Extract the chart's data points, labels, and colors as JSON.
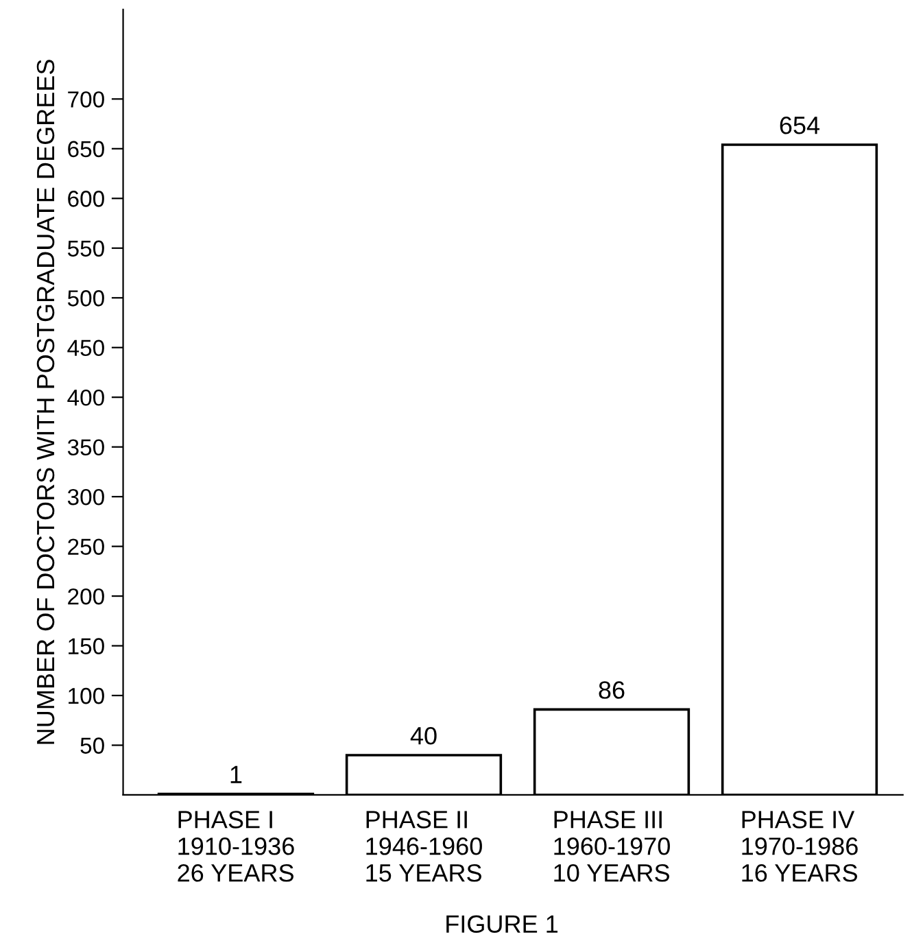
{
  "chart_data": {
    "type": "bar",
    "ylabel": "NUMBER OF DOCTORS WITH POSTGRADUATE DEGREES",
    "categories": [
      "PHASE I\n1910-1936\n26 YEARS",
      "PHASE II\n1946-1960\n15 YEARS",
      "PHASE III\n1960-1970\n10 YEARS",
      "PHASE IV\n1970-1986\n16 YEARS"
    ],
    "values": [
      1,
      40,
      86,
      654
    ],
    "color": "#ffffff",
    "data_labels": true,
    "ylim": [
      0,
      790
    ],
    "yticks": [
      50,
      100,
      150,
      200,
      250,
      300,
      350,
      400,
      450,
      500,
      550,
      600,
      650,
      700
    ],
    "grid": false,
    "annotations": [
      "FIGURE 1"
    ]
  }
}
